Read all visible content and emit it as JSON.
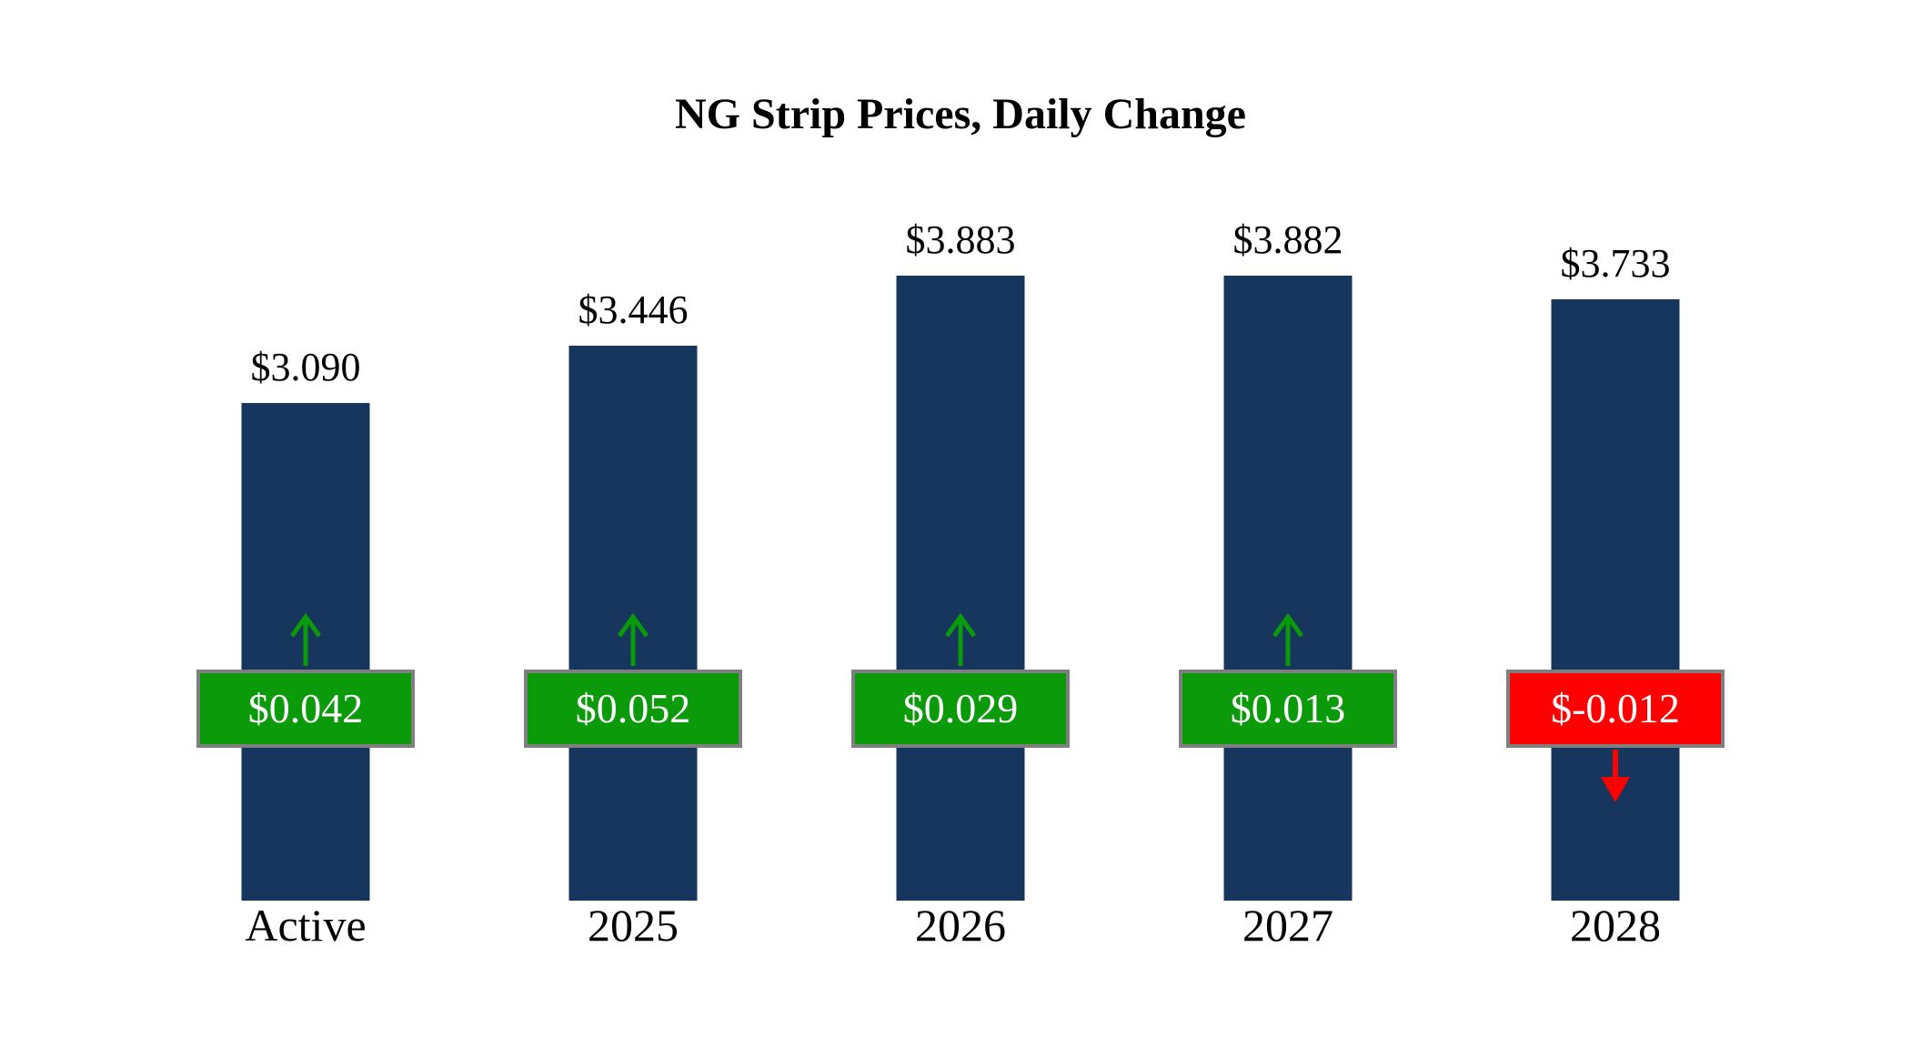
{
  "chart_data": {
    "type": "bar",
    "title": "NG Strip Prices, Daily Change",
    "categories": [
      "Active",
      "2025",
      "2026",
      "2027",
      "2028"
    ],
    "series": [
      {
        "name": "Strip Price",
        "values": [
          3.09,
          3.446,
          3.883,
          3.882,
          3.733
        ]
      },
      {
        "name": "Daily Change",
        "values": [
          0.042,
          0.052,
          0.029,
          0.013,
          -0.012
        ]
      }
    ],
    "value_labels": [
      "$3.090",
      "$3.446",
      "$3.883",
      "$3.882",
      "$3.733"
    ],
    "change_labels": [
      "$0.042",
      "$0.052",
      "$0.029",
      "$0.013",
      "$-0.012"
    ],
    "ylim": [
      0,
      4.2
    ],
    "grid": false,
    "axes_visible": false,
    "legend": "none",
    "colors": {
      "bar": "#17365D",
      "positive": "#0A9A0A",
      "negative": "#FF0000",
      "badge_border": "#7f7f7f",
      "badge_text": "#ffffff",
      "label_text": "#000000"
    }
  }
}
